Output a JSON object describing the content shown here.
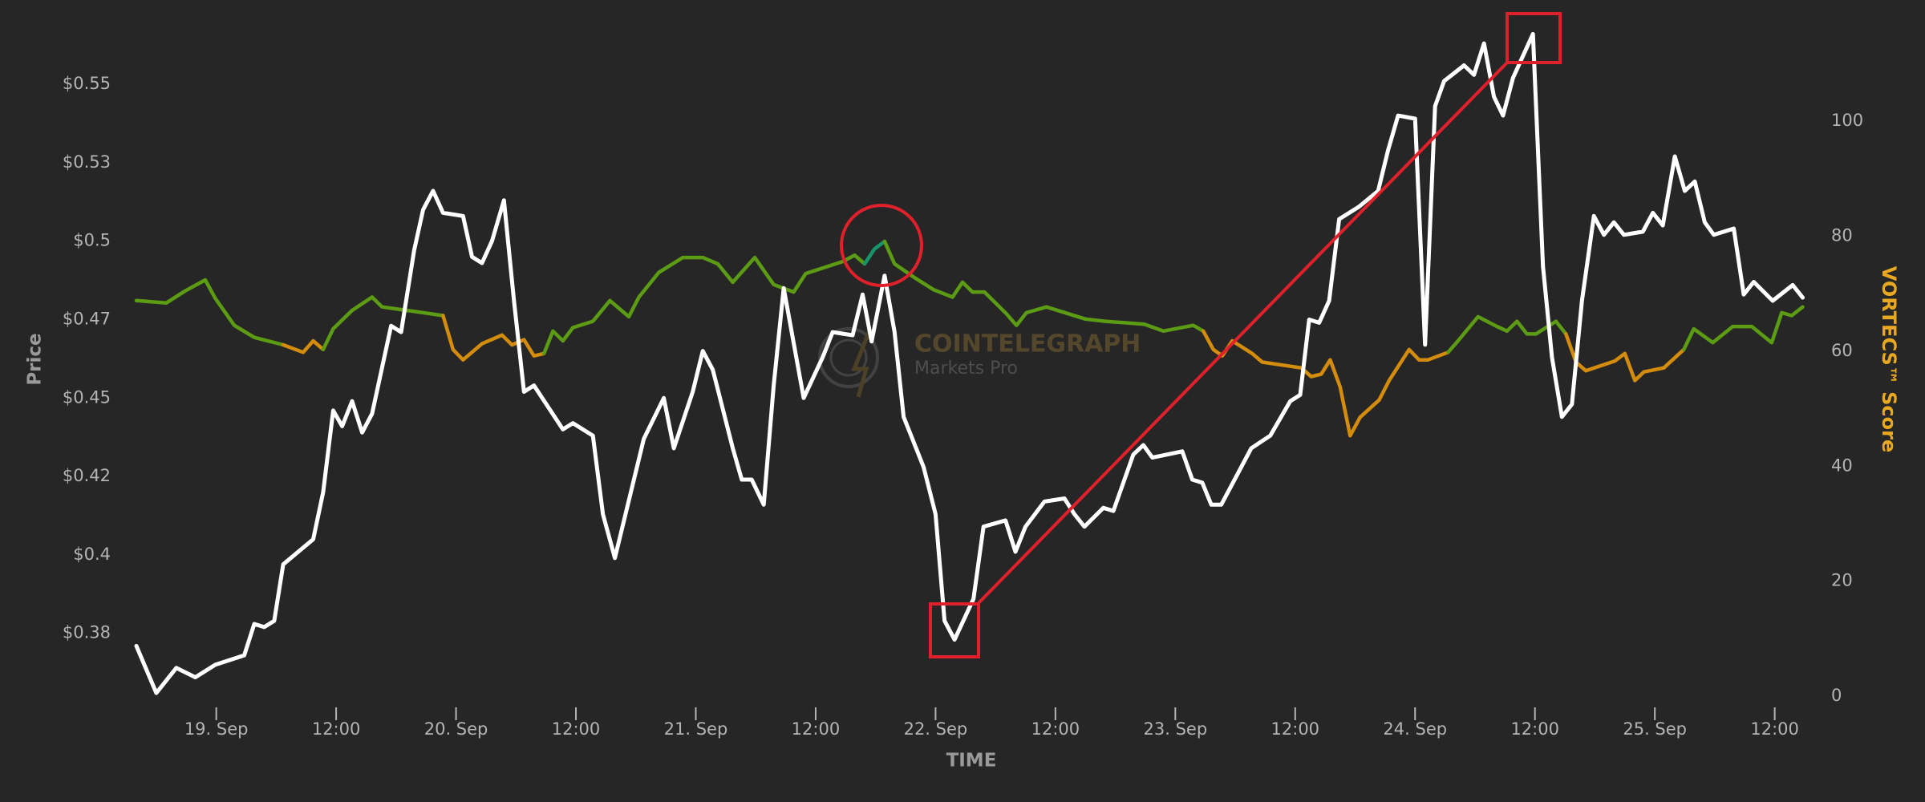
{
  "chart_data": {
    "type": "line",
    "y_label": "Price",
    "y2_label": "VORTECS™ Score",
    "x_label": "TIME",
    "watermark": {
      "title": "COINTELEGRAPH",
      "subtitle": "Markets Pro"
    },
    "xlim": [
      -8,
      159
    ],
    "xticks": [
      {
        "value": 0,
        "label": "19. Sep"
      },
      {
        "value": 12,
        "label": "12:00"
      },
      {
        "value": 24,
        "label": "20. Sep"
      },
      {
        "value": 36,
        "label": "12:00"
      },
      {
        "value": 48,
        "label": "21. Sep"
      },
      {
        "value": 60,
        "label": "12:00"
      },
      {
        "value": 72,
        "label": "22. Sep"
      },
      {
        "value": 84,
        "label": "12:00"
      },
      {
        "value": 96,
        "label": "23. Sep"
      },
      {
        "value": 108,
        "label": "12:00"
      },
      {
        "value": 120,
        "label": "24. Sep"
      },
      {
        "value": 132,
        "label": "12:00"
      },
      {
        "value": 144,
        "label": "25. Sep"
      },
      {
        "value": 156,
        "label": "12:00"
      }
    ],
    "ylim": [
      0.355,
      0.573
    ],
    "yticks": [
      {
        "value": 0.375,
        "label": "$0.38"
      },
      {
        "value": 0.4,
        "label": "$0.4"
      },
      {
        "value": 0.425,
        "label": "$0.42"
      },
      {
        "value": 0.45,
        "label": "$0.45"
      },
      {
        "value": 0.475,
        "label": "$0.47"
      },
      {
        "value": 0.5,
        "label": "$0.5"
      },
      {
        "value": 0.525,
        "label": "$0.53"
      },
      {
        "value": 0.55,
        "label": "$0.55"
      }
    ],
    "y2lim": [
      0,
      119
    ],
    "y2ticks": [
      0,
      20,
      40,
      60,
      80,
      100
    ],
    "series": [
      {
        "color": "#ffffff",
        "x": [
          -8.0,
          -6.0,
          -4.0,
          -2.1,
          -0.1,
          2.8,
          3.8,
          4.8,
          5.8,
          6.7,
          9.7,
          10.7,
          11.7,
          12.6,
          13.6,
          14.6,
          15.6,
          17.5,
          18.5,
          19.8,
          20.7,
          21.7,
          22.7,
          24.7,
          25.6,
          26.6,
          27.6,
          28.8,
          29.8,
          30.8,
          31.8,
          34.7,
          35.7,
          37.7,
          38.7,
          39.9,
          42.8,
          44.8,
          45.8,
          47.7,
          48.7,
          49.7,
          51.7,
          52.6,
          53.6,
          54.8,
          55.8,
          56.8,
          58.8,
          60.7,
          61.7,
          63.7,
          64.7,
          65.6,
          66.9,
          67.9,
          68.8,
          70.8,
          72.0,
          72.9,
          73.9,
          75.8,
          76.8,
          79.0,
          80.0,
          81.0,
          82.9,
          84.9,
          85.9,
          86.9,
          88.8,
          89.8,
          91.8,
          92.8,
          93.7,
          96.7,
          97.7,
          98.7,
          99.6,
          100.6,
          103.6,
          105.5,
          107.5,
          108.5,
          109.4,
          110.4,
          111.4,
          112.4,
          114.4,
          116.3,
          117.3,
          118.3,
          120.0,
          121.0,
          122.0,
          122.9,
          124.9,
          125.9,
          126.9,
          127.9,
          128.8,
          129.8,
          131.8,
          132.8,
          133.7,
          134.7,
          135.7,
          136.7,
          137.9,
          138.9,
          139.9,
          140.9,
          142.8,
          143.8,
          144.8,
          146.0,
          147.0,
          148.0,
          149.0,
          149.9,
          151.9,
          152.9,
          153.9,
          155.8,
          157.8,
          158.8
        ],
        "values": [
          0.371,
          0.356,
          0.364,
          0.361,
          0.365,
          0.368,
          0.378,
          0.377,
          0.379,
          0.397,
          0.405,
          0.42,
          0.446,
          0.441,
          0.449,
          0.439,
          0.445,
          0.473,
          0.471,
          0.497,
          0.51,
          0.516,
          0.509,
          0.508,
          0.495,
          0.493,
          0.5,
          0.513,
          0.481,
          0.452,
          0.454,
          0.44,
          0.442,
          0.438,
          0.413,
          0.399,
          0.437,
          0.45,
          0.434,
          0.452,
          0.465,
          0.459,
          0.434,
          0.424,
          0.424,
          0.416,
          0.454,
          0.485,
          0.45,
          0.463,
          0.471,
          0.47,
          0.483,
          0.468,
          0.489,
          0.471,
          0.444,
          0.428,
          0.413,
          0.379,
          0.373,
          0.386,
          0.409,
          0.411,
          0.401,
          0.409,
          0.417,
          0.418,
          0.413,
          0.409,
          0.415,
          0.414,
          0.432,
          0.435,
          0.431,
          0.433,
          0.424,
          0.423,
          0.416,
          0.416,
          0.434,
          0.438,
          0.449,
          0.451,
          0.475,
          0.474,
          0.481,
          0.507,
          0.511,
          0.516,
          0.529,
          0.54,
          0.539,
          0.467,
          0.543,
          0.551,
          0.556,
          0.553,
          0.563,
          0.546,
          0.54,
          0.552,
          0.566,
          0.492,
          0.463,
          0.444,
          0.448,
          0.481,
          0.508,
          0.502,
          0.506,
          0.502,
          0.503,
          0.509,
          0.505,
          0.527,
          0.516,
          0.519,
          0.506,
          0.502,
          0.504,
          0.483,
          0.487,
          0.481,
          0.486,
          0.482
        ]
      },
      {
        "axis": "y2",
        "x": [
          -8.0,
          -5.0,
          -3.1,
          -1.1,
          -0.1,
          1.8,
          3.8,
          6.7,
          8.7,
          9.7,
          10.7,
          11.7,
          13.6,
          15.6,
          16.6,
          20.7,
          22.7,
          23.7,
          24.7,
          26.6,
          28.6,
          29.6,
          30.8,
          31.8,
          32.8,
          33.7,
          34.7,
          35.7,
          37.7,
          39.4,
          41.3,
          42.3,
          44.3,
          46.7,
          48.7,
          50.2,
          51.7,
          53.9,
          55.8,
          57.8,
          59.0,
          62.7,
          63.9,
          64.9,
          65.9,
          66.9,
          67.9,
          69.8,
          71.8,
          73.7,
          74.7,
          75.7,
          76.9,
          79.1,
          80.1,
          81.1,
          83.1,
          87.0,
          89.0,
          92.9,
          94.8,
          97.8,
          98.8,
          99.8,
          100.7,
          101.7,
          103.7,
          104.7,
          108.6,
          109.6,
          110.6,
          111.5,
          112.5,
          113.5,
          114.5,
          116.4,
          117.4,
          119.4,
          120.4,
          121.3,
          123.3,
          124.3,
          126.3,
          128.2,
          129.2,
          130.2,
          131.2,
          132.1,
          134.1,
          135.1,
          136.1,
          137.1,
          140.0,
          141.0,
          142.0,
          142.9,
          144.9,
          146.9,
          147.9,
          149.8,
          151.8,
          153.7,
          155.7,
          156.7,
          157.7,
          158.8
        ],
        "values": [
          68.8,
          68.4,
          70.5,
          72.4,
          69.2,
          64.5,
          62.4,
          61.1,
          59.8,
          61.8,
          60.3,
          63.9,
          67.1,
          69.4,
          67.7,
          66.7,
          66.2,
          60.3,
          58.5,
          61.3,
          62.8,
          61.1,
          62.0,
          59.2,
          59.6,
          63.5,
          61.8,
          64.1,
          65.2,
          68.8,
          66.0,
          69.4,
          73.7,
          76.3,
          76.3,
          75.2,
          72.0,
          76.3,
          71.6,
          70.3,
          73.5,
          75.6,
          76.7,
          75.2,
          77.8,
          79.1,
          75.2,
          72.9,
          70.7,
          69.4,
          72.0,
          70.3,
          70.3,
          66.5,
          64.5,
          66.7,
          67.7,
          65.6,
          65.2,
          64.7,
          63.5,
          64.5,
          63.5,
          60.3,
          59.2,
          61.8,
          59.6,
          58.1,
          57.1,
          55.6,
          56.0,
          58.5,
          53.8,
          45.3,
          48.5,
          51.5,
          54.9,
          60.3,
          58.5,
          58.5,
          59.8,
          61.8,
          66.0,
          64.3,
          63.5,
          65.2,
          63.0,
          63.0,
          65.2,
          63.0,
          58.1,
          56.6,
          58.3,
          59.6,
          54.9,
          56.4,
          57.1,
          60.3,
          63.9,
          61.5,
          64.3,
          64.3,
          61.5,
          66.7,
          66.2,
          67.7
        ],
        "colors": [
          "#5b9c14",
          "#5b9c14",
          "#5b9c14",
          "#5b9c14",
          "#5b9c14",
          "#5b9c14",
          "#5b9c14",
          "#d48c0c",
          "#d48c0c",
          "#d48c0c",
          "#5b9c14",
          "#5b9c14",
          "#5b9c14",
          "#5b9c14",
          "#5b9c14",
          "#5b9c14",
          "#d48c0c",
          "#d48c0c",
          "#d48c0c",
          "#d48c0c",
          "#d48c0c",
          "#d48c0c",
          "#d48c0c",
          "#d48c0c",
          "#5b9c14",
          "#5b9c14",
          "#5b9c14",
          "#5b9c14",
          "#5b9c14",
          "#5b9c14",
          "#5b9c14",
          "#5b9c14",
          "#5b9c14",
          "#5b9c14",
          "#5b9c14",
          "#5b9c14",
          "#5b9c14",
          "#5b9c14",
          "#5b9c14",
          "#5b9c14",
          "#5b9c14",
          "#5b9c14",
          "#5b9c14",
          "#17946a",
          "#17946a",
          "#5b9c14",
          "#5b9c14",
          "#5b9c14",
          "#5b9c14",
          "#5b9c14",
          "#5b9c14",
          "#5b9c14",
          "#5b9c14",
          "#5b9c14",
          "#5b9c14",
          "#5b9c14",
          "#5b9c14",
          "#5b9c14",
          "#5b9c14",
          "#5b9c14",
          "#5b9c14",
          "#5b9c14",
          "#d48c0c",
          "#d48c0c",
          "#d48c0c",
          "#d48c0c",
          "#d48c0c",
          "#d48c0c",
          "#d48c0c",
          "#d48c0c",
          "#d48c0c",
          "#d48c0c",
          "#d48c0c",
          "#d48c0c",
          "#d48c0c",
          "#d48c0c",
          "#d48c0c",
          "#d48c0c",
          "#d48c0c",
          "#d48c0c",
          "#5b9c14",
          "#5b9c14",
          "#5b9c14",
          "#5b9c14",
          "#5b9c14",
          "#5b9c14",
          "#5b9c14",
          "#5b9c14",
          "#5b9c14",
          "#d48c0c",
          "#d48c0c",
          "#d48c0c",
          "#d48c0c",
          "#d48c0c",
          "#d48c0c",
          "#d48c0c",
          "#d48c0c",
          "#5b9c14",
          "#5b9c14",
          "#5b9c14",
          "#5b9c14",
          "#5b9c14",
          "#5b9c14",
          "#5b9c14",
          "#5b9c14",
          "#5b9c14"
        ]
      }
    ]
  }
}
